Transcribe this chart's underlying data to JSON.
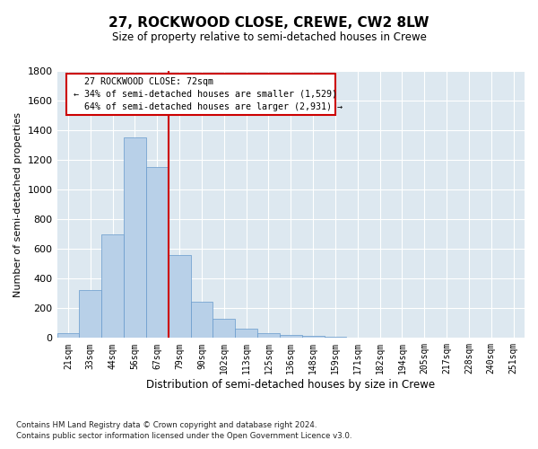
{
  "title": "27, ROCKWOOD CLOSE, CREWE, CW2 8LW",
  "subtitle": "Size of property relative to semi-detached houses in Crewe",
  "xlabel": "Distribution of semi-detached houses by size in Crewe",
  "ylabel": "Number of semi-detached properties",
  "property_label": "27 ROCKWOOD CLOSE: 72sqm",
  "pct_smaller": 34,
  "pct_larger": 64,
  "count_smaller": 1529,
  "count_larger": 2931,
  "categories": [
    "21sqm",
    "33sqm",
    "44sqm",
    "56sqm",
    "67sqm",
    "79sqm",
    "90sqm",
    "102sqm",
    "113sqm",
    "125sqm",
    "136sqm",
    "148sqm",
    "159sqm",
    "171sqm",
    "182sqm",
    "194sqm",
    "205sqm",
    "217sqm",
    "228sqm",
    "240sqm",
    "251sqm"
  ],
  "values": [
    30,
    320,
    700,
    1350,
    1150,
    560,
    245,
    130,
    65,
    30,
    20,
    15,
    8,
    5,
    3,
    2,
    1,
    1,
    0,
    0,
    0
  ],
  "bar_color": "#b8d0e8",
  "bar_edge_color": "#6699cc",
  "highlight_color": "#cc0000",
  "background_color": "#dde8f0",
  "grid_color": "#ffffff",
  "ylim": [
    0,
    1800
  ],
  "yticks": [
    0,
    200,
    400,
    600,
    800,
    1000,
    1200,
    1400,
    1600,
    1800
  ],
  "footnote1": "Contains HM Land Registry data © Crown copyright and database right 2024.",
  "footnote2": "Contains public sector information licensed under the Open Government Licence v3.0.",
  "property_line_x": 4.5
}
